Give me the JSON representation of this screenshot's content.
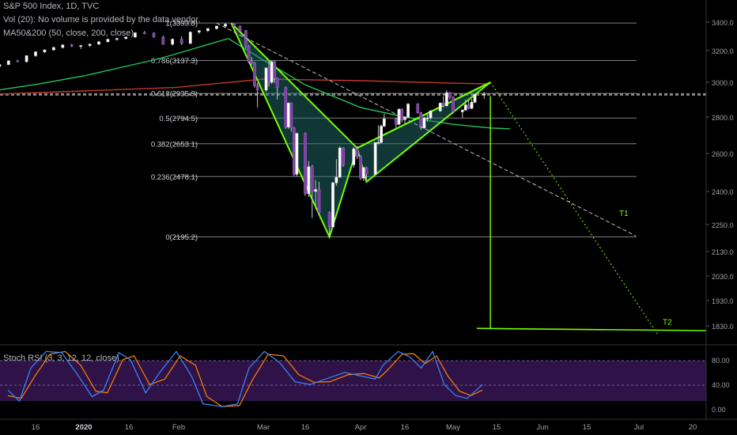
{
  "header": {
    "symbol_line": "S&P 500 Index, 1D, TVC",
    "vol_line": "Vol (20): No volume is provided by the data vendor.",
    "ma_line": "MA50&200 (50, close, 200, close)",
    "rsi_line": "Stoch RSI (3, 3, 12, 12, close)"
  },
  "chart_data": {
    "type": "candlestick",
    "price_axis": {
      "ticks": [
        3400.0,
        3200.0,
        3000.0,
        2800.0,
        2600.0,
        2400.0,
        2250.0,
        2130.0,
        2030.0,
        1930.0,
        1830.0
      ],
      "labels": [
        "3400.0",
        "3200.0",
        "3000.0",
        "2800.0",
        "2600.0",
        "2400.0",
        "2250.0",
        "2130.0",
        "2030.0",
        "1930.0",
        "1830.0"
      ]
    },
    "current_price": 2930,
    "time_axis": {
      "labels": [
        "16",
        "2020",
        "16",
        "Feb",
        "Mar",
        "16",
        "Apr",
        "16",
        "May",
        "15",
        "Jun",
        "15",
        "Jul",
        "20"
      ]
    },
    "fibonacci": [
      {
        "label": "1(3393.8)",
        "price": 3393.8
      },
      {
        "label": "0.786(3137.3)",
        "price": 3137.3
      },
      {
        "label": "0.618(2935.9)",
        "price": 2935.9
      },
      {
        "label": "0.5(2794.5)",
        "price": 2794.5
      },
      {
        "label": "0.382(2653.1)",
        "price": 2653.1
      },
      {
        "label": "0.236(2478.1)",
        "price": 2478.1
      },
      {
        "label": "0(2195.2)",
        "price": 2195.2
      }
    ],
    "pattern": {
      "name": "bat",
      "points": [
        {
          "date": "2020-02-19",
          "price": 3393.8
        },
        {
          "date": "2020-03-23",
          "price": 2195.2
        },
        {
          "date": "2020-03-31",
          "price": 2630
        },
        {
          "date": "2020-04-03",
          "price": 2450
        },
        {
          "date": "2020-05-13",
          "price": 3000
        }
      ]
    },
    "targets": [
      {
        "label": "T1",
        "price": 2300
      },
      {
        "label": "T2",
        "price": 1810
      }
    ],
    "stoch_rsi": {
      "levels": [
        80,
        40
      ],
      "ticks": [
        80,
        40,
        0
      ],
      "labels": [
        "80.00",
        "40.00",
        "0.00"
      ]
    },
    "colors": {
      "background": "#000000",
      "pattern": "#76ff03",
      "ma50": "#22c55e",
      "ma200": "#c0392b",
      "rsi_k": "#3b82f6",
      "rsi_d": "#f57c00",
      "rsi_band": "#2e1248",
      "fib_line": "#9e9e9e"
    }
  }
}
